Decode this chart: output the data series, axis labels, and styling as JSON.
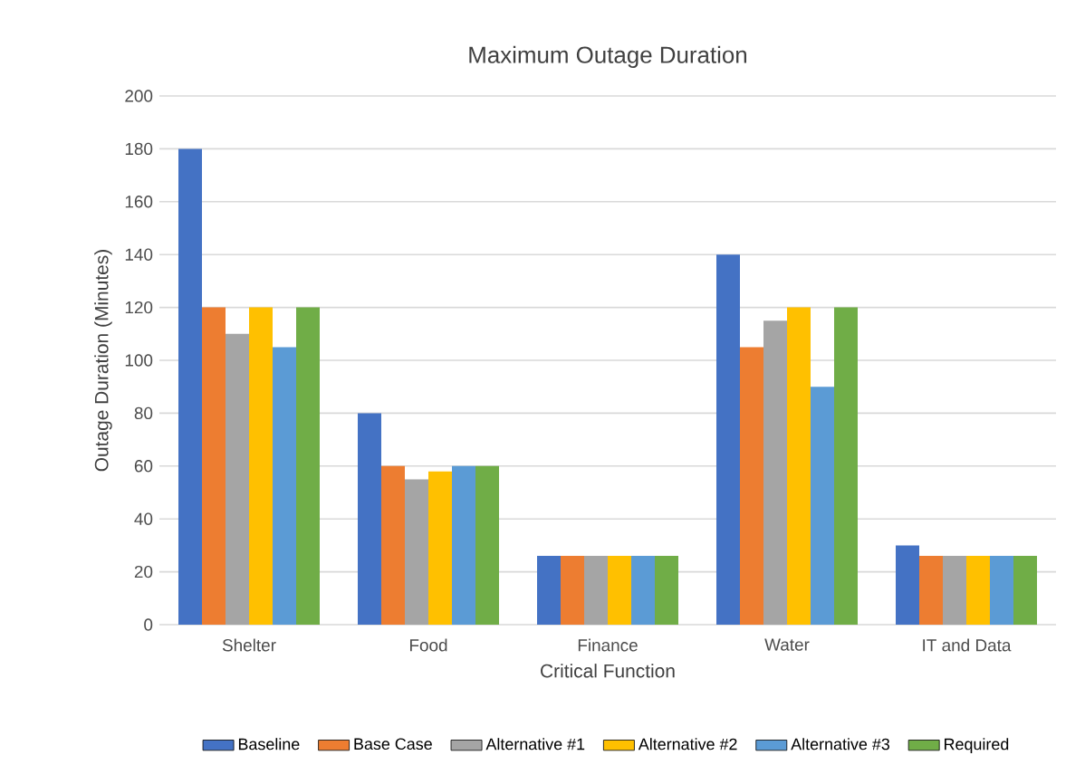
{
  "chart_data": {
    "type": "bar",
    "title": "Maximum Outage Duration",
    "xlabel": "Critical Function",
    "ylabel": "Outage Duration (Minutes)",
    "categories": [
      "Shelter",
      "Food",
      "Finance",
      "Water",
      "IT and Data"
    ],
    "series": [
      {
        "name": "Baseline",
        "color": "#4472c4",
        "values": [
          180,
          80,
          26,
          140,
          30
        ]
      },
      {
        "name": "Base Case",
        "color": "#ed7d31",
        "values": [
          120,
          60,
          26,
          105,
          26
        ]
      },
      {
        "name": "Alternative #1",
        "color": "#a5a5a5",
        "values": [
          110,
          55,
          26,
          115,
          26
        ]
      },
      {
        "name": "Alternative #2",
        "color": "#ffc000",
        "values": [
          120,
          58,
          26,
          120,
          26
        ]
      },
      {
        "name": "Alternative #3",
        "color": "#5b9bd5",
        "values": [
          105,
          60,
          26,
          90,
          26
        ]
      },
      {
        "name": "Required",
        "color": "#70ad47",
        "values": [
          120,
          60,
          26,
          120,
          26
        ]
      }
    ],
    "ylim": [
      0,
      200
    ],
    "yticks": [
      0,
      20,
      40,
      60,
      80,
      100,
      120,
      140,
      160,
      180,
      200
    ],
    "grid": "y",
    "legend": "bottom"
  }
}
